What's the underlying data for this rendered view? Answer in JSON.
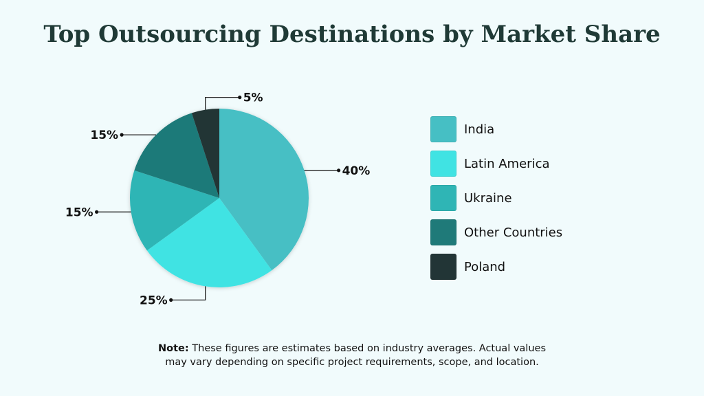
{
  "title": "Top Outsourcing Destinations by Market Share",
  "chart_data": {
    "type": "pie",
    "title": "Top Outsourcing Destinations by Market Share",
    "categories": [
      "India",
      "Latin America",
      "Ukraine",
      "Other Countries",
      "Poland"
    ],
    "values": [
      40,
      25,
      15,
      15,
      5
    ],
    "value_labels": [
      "40%",
      "25%",
      "15%",
      "15%",
      "5%"
    ],
    "colors": [
      "#46bfc4",
      "#40e3e3",
      "#2fb5b5",
      "#1f7a79",
      "#223536"
    ],
    "legend_position": "right"
  },
  "legend": {
    "items": [
      {
        "label": "India",
        "color": "#46bfc4"
      },
      {
        "label": "Latin America",
        "color": "#40e3e3"
      },
      {
        "label": "Ukraine",
        "color": "#2fb5b5"
      },
      {
        "label": "Other Countries",
        "color": "#1f7a79"
      },
      {
        "label": "Poland",
        "color": "#223536"
      }
    ]
  },
  "note": {
    "prefix": "Note:",
    "text": " These figures are estimates based on industry averages. Actual values may vary depending on specific project requirements, scope, and location."
  }
}
